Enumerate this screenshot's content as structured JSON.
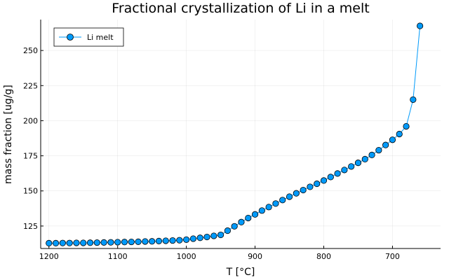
{
  "chart_data": {
    "type": "line",
    "title": "Fractional crystallization of Li in a melt",
    "xlabel": "T [°C]",
    "ylabel": "mass fraction [ug/g]",
    "x_reversed": true,
    "xlim": [
      1212,
      630
    ],
    "ylim": [
      109,
      272
    ],
    "xticks": [
      1200,
      1100,
      1000,
      900,
      800,
      700
    ],
    "yticks": [
      125,
      150,
      175,
      200,
      225,
      250
    ],
    "grid": true,
    "legend": "top-left",
    "series": [
      {
        "name": "Li melt",
        "color": "#009AFA",
        "x": [
          1200,
          1190,
          1180,
          1170,
          1160,
          1150,
          1140,
          1130,
          1120,
          1110,
          1100,
          1090,
          1080,
          1070,
          1060,
          1050,
          1040,
          1030,
          1020,
          1010,
          1000,
          990,
          980,
          970,
          960,
          950,
          940,
          930,
          920,
          910,
          900,
          890,
          880,
          870,
          860,
          850,
          840,
          830,
          820,
          810,
          800,
          790,
          780,
          770,
          760,
          750,
          740,
          730,
          720,
          710,
          700,
          690,
          680,
          670,
          660
        ],
        "y": [
          112.8,
          112.8,
          112.9,
          112.9,
          113.0,
          113.0,
          113.1,
          113.2,
          113.3,
          113.4,
          113.5,
          113.6,
          113.7,
          113.8,
          114.0,
          114.1,
          114.3,
          114.5,
          114.7,
          114.9,
          115.3,
          116.0,
          116.6,
          117.2,
          118.0,
          118.7,
          121.7,
          124.8,
          127.8,
          130.7,
          133.3,
          136.0,
          138.5,
          141.0,
          143.5,
          145.9,
          148.3,
          150.6,
          152.9,
          155.1,
          157.4,
          159.9,
          162.4,
          164.9,
          167.4,
          170.0,
          172.6,
          175.6,
          179.0,
          182.7,
          186.4,
          190.5,
          196.0,
          215.0,
          267.5
        ]
      }
    ]
  }
}
